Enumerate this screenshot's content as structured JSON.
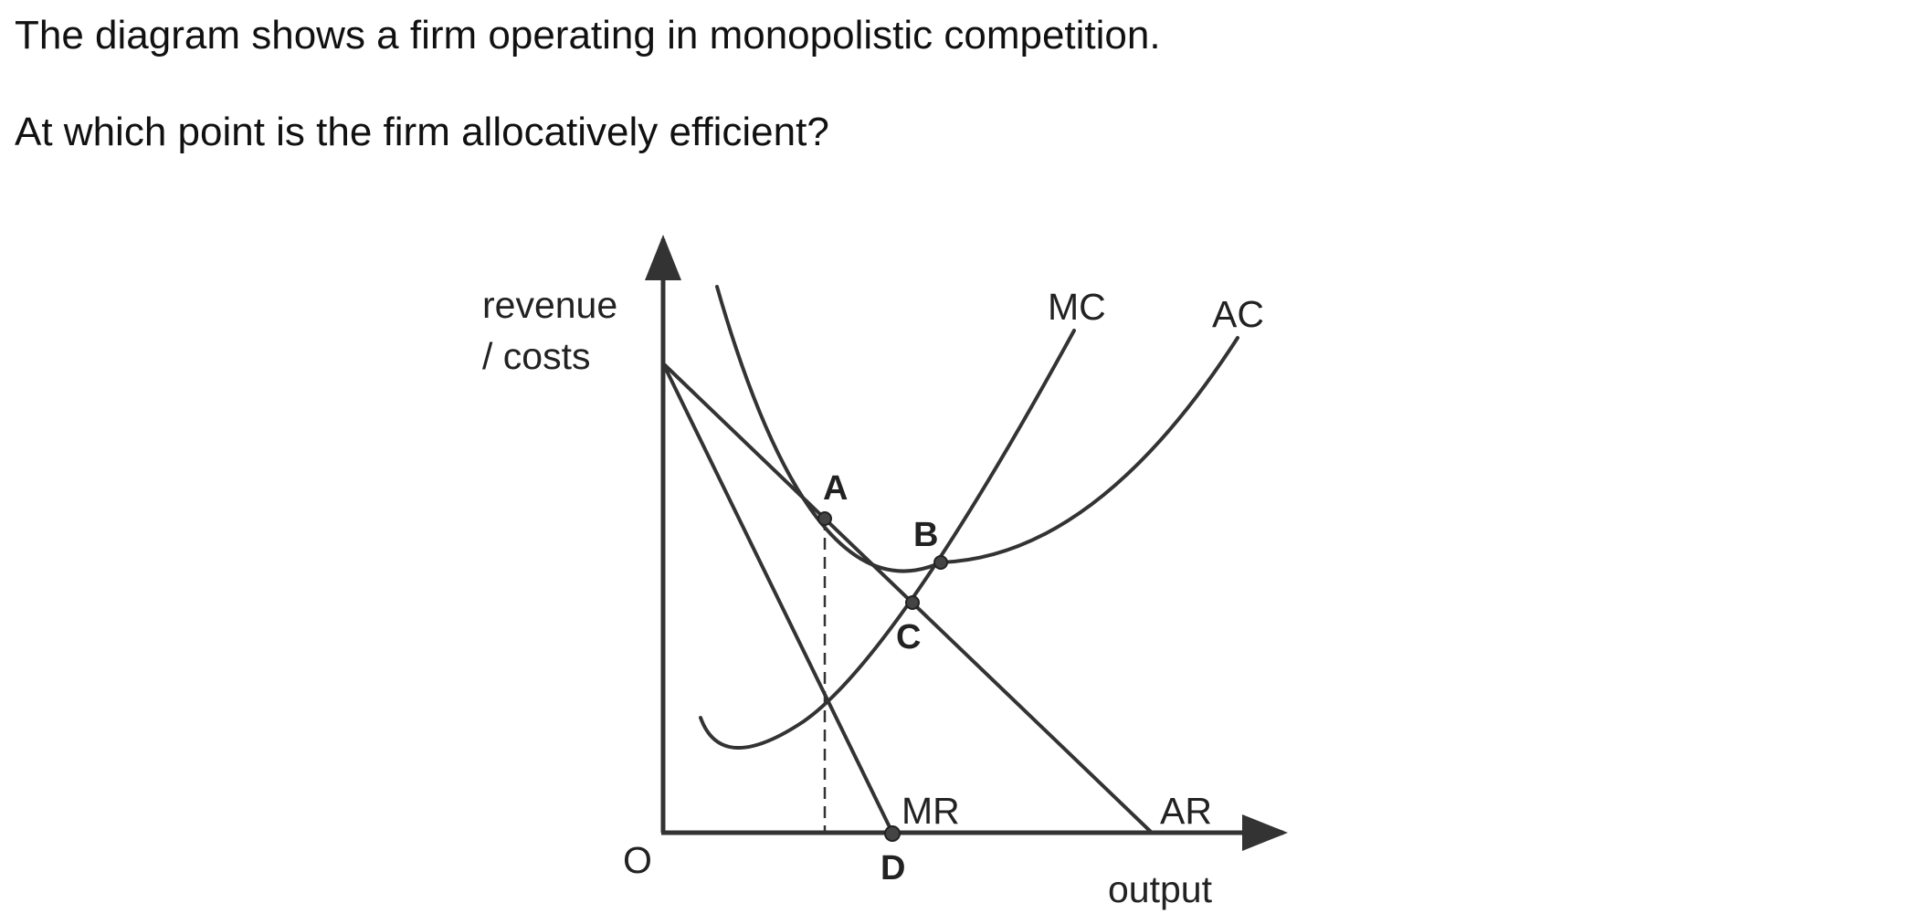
{
  "question": {
    "line1": "The diagram shows a firm operating in monopolistic competition.",
    "line2": "At which point is the firm allocatively efficient?"
  },
  "diagram": {
    "y_axis_label_line1": "revenue",
    "y_axis_label_line2": "/ costs",
    "x_axis_label": "output",
    "origin_label": "O",
    "curves": {
      "mc": "MC",
      "ac": "AC",
      "mr": "MR",
      "ar": "AR"
    },
    "points": {
      "a": "A",
      "b": "B",
      "c": "C",
      "d": "D"
    }
  }
}
